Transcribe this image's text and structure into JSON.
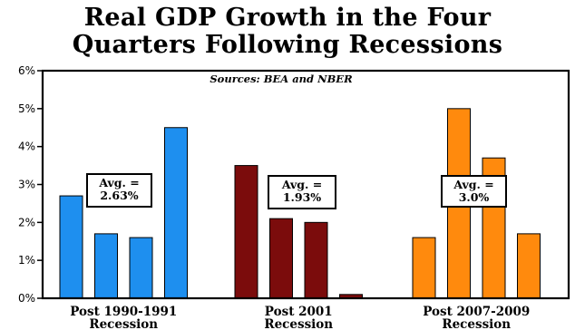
{
  "chart_data": {
    "type": "bar",
    "title_lines": [
      "Real GDP Growth in the Four",
      "Quarters Following Recessions"
    ],
    "source": "Sources: BEA and NBER",
    "ylim": [
      0,
      6
    ],
    "yticks": [
      {
        "value": 0,
        "label": "0%"
      },
      {
        "value": 1,
        "label": "1%"
      },
      {
        "value": 2,
        "label": "2%"
      },
      {
        "value": 3,
        "label": "3%"
      },
      {
        "value": 4,
        "label": "4%"
      },
      {
        "value": 5,
        "label": "5%"
      },
      {
        "value": 6,
        "label": "6%"
      }
    ],
    "grid": false,
    "groups": [
      {
        "label_lines": [
          "Post 1990-1991",
          "Recession"
        ],
        "color": "#1E8FEF",
        "values": [
          2.7,
          1.7,
          1.6,
          4.5
        ],
        "avg_lines": [
          "Avg. =",
          "2.63%"
        ]
      },
      {
        "label_lines": [
          "Post 2001",
          "Recession"
        ],
        "color": "#7B0C0C",
        "values": [
          3.5,
          2.1,
          2.0,
          0.1
        ],
        "avg_lines": [
          "Avg. =",
          "1.93%"
        ]
      },
      {
        "label_lines": [
          "Post 2007-2009",
          "Recession"
        ],
        "color": "#FF8A0D",
        "values": [
          1.6,
          5.0,
          3.7,
          1.7
        ],
        "avg_lines": [
          "Avg. =",
          "3.0%"
        ]
      }
    ]
  }
}
